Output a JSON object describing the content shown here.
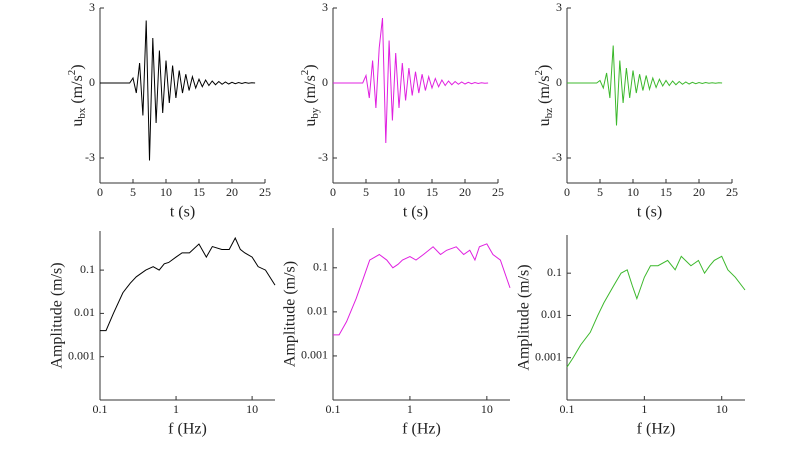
{
  "chart_data": [
    {
      "type": "line",
      "x_label": "t (s)",
      "y_label": {
        "base": "u",
        "sub": "bx",
        "unit": " (m/s",
        "sup": "2",
        "close": ")"
      },
      "x": [
        0,
        0.5,
        1,
        1.5,
        2,
        2.5,
        3,
        3.5,
        4,
        4.5,
        5,
        5.5,
        6,
        6.5,
        7,
        7.5,
        8,
        8.5,
        9,
        9.5,
        10,
        10.5,
        11,
        11.5,
        12,
        12.5,
        13,
        13.5,
        14,
        14.5,
        15,
        15.5,
        16,
        16.5,
        17,
        17.5,
        18,
        18.5,
        19,
        19.5,
        20,
        20.5,
        21,
        21.5,
        22,
        22.5,
        23,
        23.5
      ],
      "series": [
        {
          "color": "#000000",
          "values": [
            0,
            0,
            0,
            0,
            0,
            0,
            0,
            0,
            0,
            0,
            0.2,
            -0.4,
            0.8,
            -1.3,
            2.5,
            -3.1,
            1.8,
            -1.6,
            1.3,
            -1.2,
            0.9,
            -0.8,
            0.7,
            -0.6,
            0.5,
            -0.4,
            0.35,
            -0.3,
            0.25,
            -0.2,
            0.15,
            -0.15,
            0.12,
            -0.1,
            0.08,
            -0.07,
            0.06,
            -0.05,
            0.04,
            -0.04,
            0.03,
            -0.03,
            0.02,
            -0.02,
            0.02,
            -0.01,
            0.01,
            0
          ]
        }
      ],
      "xlim": [
        0,
        25
      ],
      "xticks": [
        0,
        5,
        10,
        15,
        20,
        25
      ],
      "ylim": [
        -4,
        3
      ],
      "yticks": [
        -3,
        0,
        3
      ]
    },
    {
      "type": "line",
      "x_label": "t (s)",
      "y_label": {
        "base": "u",
        "sub": "by",
        "unit": " (m/s",
        "sup": "2",
        "close": ")"
      },
      "x": [
        0,
        0.5,
        1,
        1.5,
        2,
        2.5,
        3,
        3.5,
        4,
        4.5,
        5,
        5.5,
        6,
        6.5,
        7,
        7.5,
        8,
        8.5,
        9,
        9.5,
        10,
        10.5,
        11,
        11.5,
        12,
        12.5,
        13,
        13.5,
        14,
        14.5,
        15,
        15.5,
        16,
        16.5,
        17,
        17.5,
        18,
        18.5,
        19,
        19.5,
        20,
        20.5,
        21,
        21.5,
        22,
        22.5,
        23,
        23.5
      ],
      "series": [
        {
          "color": "#e020e0",
          "values": [
            0,
            0,
            0,
            0,
            0,
            0,
            0,
            0,
            0,
            0,
            0.3,
            -0.6,
            0.9,
            -1.0,
            1.4,
            2.6,
            -2.4,
            1.7,
            -1.5,
            1.2,
            -1.0,
            0.8,
            -0.7,
            0.6,
            -0.5,
            0.45,
            -0.4,
            0.35,
            -0.3,
            0.25,
            -0.2,
            0.18,
            -0.15,
            0.12,
            -0.1,
            0.08,
            -0.07,
            0.06,
            -0.05,
            0.04,
            -0.04,
            0.03,
            -0.03,
            0.02,
            -0.02,
            0.01,
            -0.01,
            0
          ]
        }
      ],
      "xlim": [
        0,
        25
      ],
      "xticks": [
        0,
        5,
        10,
        15,
        20,
        25
      ],
      "ylim": [
        -4,
        3
      ],
      "yticks": [
        -3,
        0,
        3
      ]
    },
    {
      "type": "line",
      "x_label": "t (s)",
      "y_label": {
        "base": "u",
        "sub": "bz",
        "unit": " (m/s",
        "sup": "2",
        "close": ")"
      },
      "x": [
        0,
        0.5,
        1,
        1.5,
        2,
        2.5,
        3,
        3.5,
        4,
        4.5,
        5,
        5.5,
        6,
        6.5,
        7,
        7.5,
        8,
        8.5,
        9,
        9.5,
        10,
        10.5,
        11,
        11.5,
        12,
        12.5,
        13,
        13.5,
        14,
        14.5,
        15,
        15.5,
        16,
        16.5,
        17,
        17.5,
        18,
        18.5,
        19,
        19.5,
        20,
        20.5,
        21,
        21.5,
        22,
        22.5,
        23,
        23.5
      ],
      "series": [
        {
          "color": "#3cb82c",
          "values": [
            0,
            0,
            0,
            0,
            0,
            0,
            0,
            0,
            0,
            0,
            0.1,
            -0.2,
            0.4,
            -0.6,
            1.5,
            -1.7,
            0.9,
            -0.8,
            0.6,
            -0.6,
            0.5,
            -0.4,
            0.35,
            -0.3,
            0.3,
            -0.25,
            0.2,
            -0.18,
            0.15,
            -0.12,
            0.1,
            -0.1,
            0.08,
            -0.07,
            0.06,
            -0.05,
            0.04,
            -0.04,
            0.03,
            -0.03,
            0.02,
            -0.02,
            0.02,
            -0.01,
            0.01,
            -0.01,
            0.01,
            0
          ]
        }
      ],
      "xlim": [
        0,
        25
      ],
      "xticks": [
        0,
        5,
        10,
        15,
        20,
        25
      ],
      "ylim": [
        -4,
        3
      ],
      "yticks": [
        -3,
        0,
        3
      ]
    },
    {
      "type": "line",
      "x_label": "f (Hz)",
      "y_label": "Amplitude (m/s)",
      "xscale": "log",
      "yscale": "log",
      "x": [
        0.1,
        0.12,
        0.15,
        0.2,
        0.25,
        0.3,
        0.4,
        0.5,
        0.6,
        0.7,
        0.8,
        1,
        1.2,
        1.5,
        2,
        2.5,
        3,
        4,
        5,
        6,
        7,
        8,
        10,
        12,
        15,
        20
      ],
      "series": [
        {
          "color": "#000000",
          "values": [
            0.004,
            0.004,
            0.01,
            0.03,
            0.05,
            0.07,
            0.1,
            0.12,
            0.1,
            0.14,
            0.15,
            0.2,
            0.25,
            0.25,
            0.4,
            0.2,
            0.35,
            0.3,
            0.3,
            0.55,
            0.3,
            0.25,
            0.2,
            0.12,
            0.1,
            0.045
          ]
        }
      ],
      "xlim": [
        0.1,
        20
      ],
      "xticks": [
        0.1,
        1,
        10
      ],
      "ylim": [
        0.0001,
        0.8
      ],
      "yticks": [
        0.001,
        0.01,
        0.1
      ]
    },
    {
      "type": "line",
      "x_label": "f (Hz)",
      "y_label": "Amplitude (m/s)",
      "xscale": "log",
      "yscale": "log",
      "x": [
        0.1,
        0.12,
        0.15,
        0.2,
        0.25,
        0.3,
        0.4,
        0.5,
        0.6,
        0.7,
        0.8,
        1,
        1.2,
        1.5,
        2,
        2.5,
        3,
        4,
        5,
        6,
        7,
        8,
        10,
        12,
        15,
        20
      ],
      "series": [
        {
          "color": "#e020e0",
          "values": [
            0.003,
            0.003,
            0.006,
            0.02,
            0.06,
            0.15,
            0.2,
            0.15,
            0.1,
            0.12,
            0.15,
            0.18,
            0.15,
            0.2,
            0.3,
            0.2,
            0.25,
            0.3,
            0.2,
            0.25,
            0.15,
            0.3,
            0.35,
            0.2,
            0.15,
            0.035
          ]
        }
      ],
      "xlim": [
        0.1,
        20
      ],
      "xticks": [
        0.1,
        1,
        10
      ],
      "ylim": [
        0.0001,
        0.8
      ],
      "yticks": [
        0.001,
        0.01,
        0.1
      ]
    },
    {
      "type": "line",
      "x_label": "f (Hz)",
      "y_label": "Amplitude (m/s)",
      "xscale": "log",
      "yscale": "log",
      "x": [
        0.1,
        0.12,
        0.15,
        0.2,
        0.25,
        0.3,
        0.4,
        0.5,
        0.6,
        0.7,
        0.8,
        1,
        1.2,
        1.5,
        2,
        2.5,
        3,
        4,
        5,
        6,
        7,
        8,
        10,
        12,
        15,
        20
      ],
      "series": [
        {
          "color": "#3cb82c",
          "values": [
            0.0006,
            0.001,
            0.002,
            0.004,
            0.01,
            0.02,
            0.05,
            0.1,
            0.12,
            0.05,
            0.025,
            0.08,
            0.15,
            0.15,
            0.2,
            0.12,
            0.25,
            0.15,
            0.2,
            0.1,
            0.15,
            0.2,
            0.25,
            0.12,
            0.08,
            0.04
          ]
        }
      ],
      "xlim": [
        0.1,
        20
      ],
      "xticks": [
        0.1,
        1,
        10
      ],
      "ylim": [
        0.0001,
        0.8
      ],
      "yticks": [
        0.001,
        0.01,
        0.1
      ]
    }
  ]
}
